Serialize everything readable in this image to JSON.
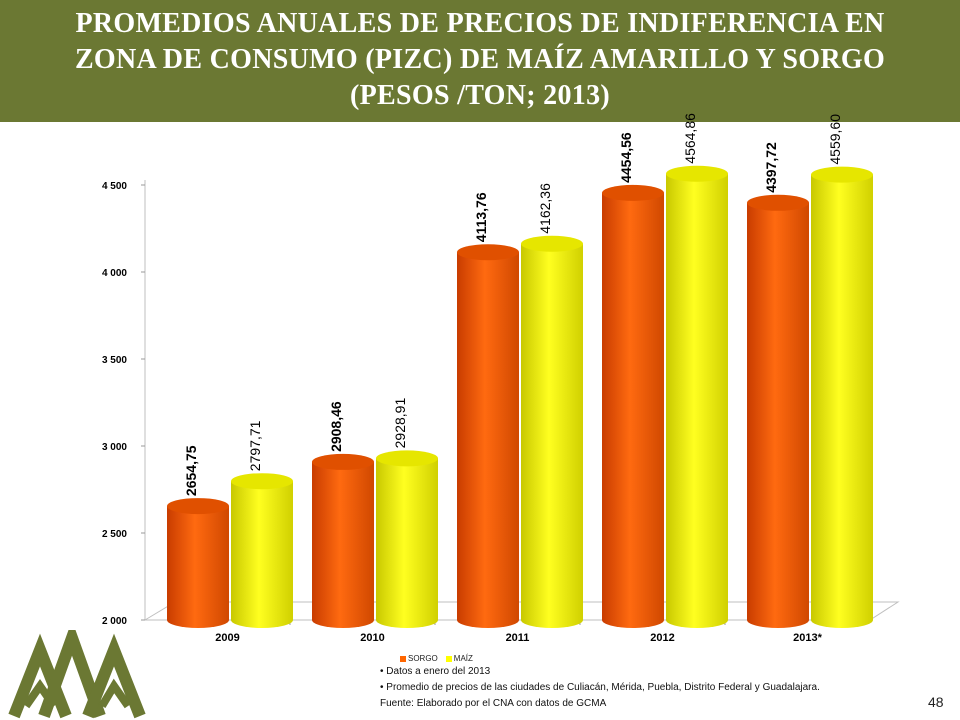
{
  "title": {
    "line1": "PROMEDIOS ANUALES DE PRECIOS DE INDIFERENCIA EN",
    "line2": "ZONA DE CONSUMO (PIZC) DE MAÍZ AMARILLO Y SORGO",
    "line3": "(PESOS /TON; 2013)"
  },
  "colors": {
    "title_bg": "#6b7833",
    "sorgo": "#ff6600",
    "maiz": "#ffff00",
    "logo": "#6b7833"
  },
  "chart_data": {
    "type": "bar",
    "categories": [
      "2009",
      "2010",
      "2011",
      "2012",
      "2013*"
    ],
    "series": [
      {
        "name": "SORGO",
        "values": [
          2654.75,
          2908.46,
          4113.76,
          4454.56,
          4397.72
        ],
        "labels": [
          "2654,75",
          "2908,46",
          "4113,76",
          "4454,56",
          "4397,72"
        ]
      },
      {
        "name": "MAÍZ",
        "values": [
          2797.71,
          2928.91,
          4162.36,
          4564.86,
          4559.6
        ],
        "labels": [
          "2797,71",
          "2928,91",
          "4162,36",
          "4564,86",
          "4559,60"
        ]
      }
    ],
    "ylim": [
      2000,
      4500
    ],
    "yticks": [
      2000,
      2500,
      3000,
      3500,
      4000,
      4500
    ],
    "ytick_labels": [
      "2 000",
      "2 500",
      "3 000",
      "3 500",
      "4 000",
      "4 500"
    ],
    "legend_position": "bottom"
  },
  "notes": {
    "note1": "Datos a  enero del 2013",
    "note2": "Promedio de precios de las ciudades de Culiacán, Mérida, Puebla, Distrito Federal y Guadalajara.",
    "source": "Fuente: Elaborado por el CNA con datos de GCMA"
  },
  "page_number": "48"
}
